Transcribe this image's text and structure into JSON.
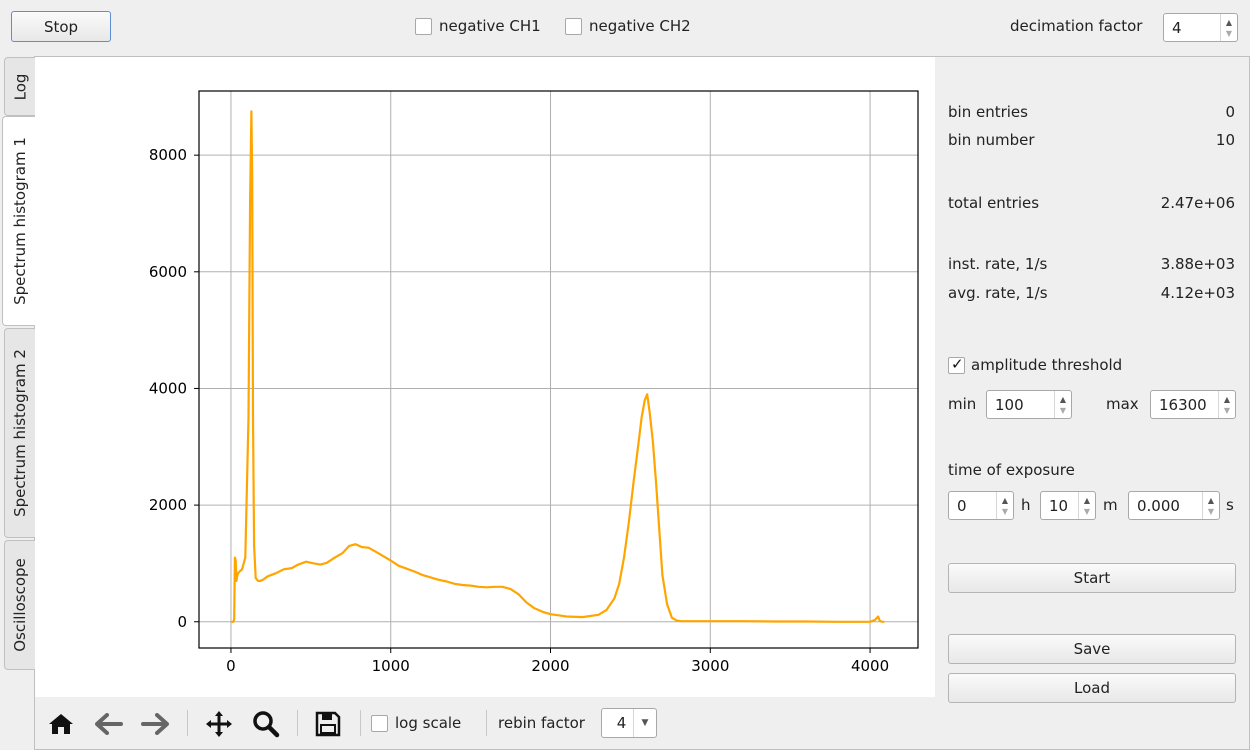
{
  "top": {
    "stop_label": "Stop",
    "neg_ch1": {
      "label": "negative CH1",
      "checked": false
    },
    "neg_ch2": {
      "label": "negative CH2",
      "checked": false
    },
    "decimation_label": "decimation factor",
    "decimation_value": "4"
  },
  "tabs": [
    {
      "label": "Log",
      "active": false
    },
    {
      "label": "Spectrum histogram 1",
      "active": true
    },
    {
      "label": "Spectrum histogram 2",
      "active": false
    },
    {
      "label": "Oscilloscope",
      "active": false
    }
  ],
  "stats": {
    "bin_entries_label": "bin entries",
    "bin_entries_value": "0",
    "bin_number_label": "bin number",
    "bin_number_value": "10",
    "total_entries_label": "total entries",
    "total_entries_value": "2.47e+06",
    "inst_rate_label": "inst. rate, 1/s",
    "inst_rate_value": "3.88e+03",
    "avg_rate_label": "avg. rate, 1/s",
    "avg_rate_value": "4.12e+03"
  },
  "threshold": {
    "label": "amplitude threshold",
    "checked": true,
    "min_label": "min",
    "min_value": "100",
    "max_label": "max",
    "max_value": "16300"
  },
  "exposure": {
    "label": "time of exposure",
    "h_value": "0",
    "h_unit": "h",
    "m_value": "10",
    "m_unit": "m",
    "s_value": "0.000",
    "s_unit": "s"
  },
  "buttons": {
    "start": "Start",
    "save": "Save",
    "load": "Load"
  },
  "toolbar": {
    "icons": [
      "home-icon",
      "back-arrow-icon",
      "forward-arrow-icon",
      "pan-icon",
      "zoom-icon",
      "save-icon"
    ],
    "log_scale_label": "log scale",
    "log_scale_checked": false,
    "rebin_label": "rebin factor",
    "rebin_value": "4"
  },
  "chart_data": {
    "type": "line",
    "title": "",
    "xlabel": "",
    "ylabel": "",
    "xlim": [
      -200,
      4300
    ],
    "ylim": [
      -450,
      9100
    ],
    "xticks": [
      0,
      1000,
      2000,
      3000,
      4000
    ],
    "yticks": [
      0,
      2000,
      4000,
      6000,
      8000
    ],
    "grid": true,
    "color": "#ffa500",
    "series": [
      {
        "x": [
          0,
          15,
          20,
          25,
          30,
          35,
          40,
          50,
          70,
          90,
          110,
          120,
          128,
          133,
          138,
          145,
          155,
          170,
          185,
          200,
          230,
          280,
          330,
          380,
          420,
          470,
          520,
          560,
          600,
          650,
          700,
          740,
          780,
          820,
          860,
          900,
          950,
          1000,
          1050,
          1100,
          1150,
          1200,
          1250,
          1300,
          1350,
          1400,
          1450,
          1500,
          1550,
          1600,
          1650,
          1700,
          1750,
          1800,
          1850,
          1900,
          1950,
          2000,
          2050,
          2100,
          2200,
          2300,
          2350,
          2400,
          2430,
          2460,
          2490,
          2520,
          2550,
          2570,
          2590,
          2605,
          2620,
          2640,
          2660,
          2680,
          2700,
          2730,
          2760,
          2790,
          2820,
          2850,
          2900,
          3000,
          3200,
          3400,
          3600,
          3800,
          3950,
          4000,
          4030,
          4050,
          4060,
          4075,
          4090
        ],
        "y": [
          0,
          0,
          40,
          1100,
          1050,
          700,
          800,
          850,
          900,
          1100,
          3500,
          7200,
          8750,
          7600,
          3500,
          1300,
          750,
          700,
          700,
          720,
          780,
          830,
          900,
          920,
          980,
          1030,
          1000,
          980,
          1010,
          1100,
          1180,
          1300,
          1330,
          1280,
          1270,
          1210,
          1130,
          1050,
          960,
          910,
          860,
          800,
          760,
          720,
          690,
          650,
          630,
          620,
          600,
          590,
          600,
          600,
          560,
          470,
          330,
          230,
          170,
          130,
          110,
          90,
          80,
          120,
          200,
          400,
          650,
          1100,
          1700,
          2400,
          3050,
          3500,
          3800,
          3900,
          3600,
          3100,
          2400,
          1600,
          800,
          300,
          70,
          20,
          10,
          10,
          10,
          10,
          10,
          5,
          5,
          0,
          0,
          0,
          30,
          90,
          20,
          0,
          0
        ]
      }
    ]
  }
}
